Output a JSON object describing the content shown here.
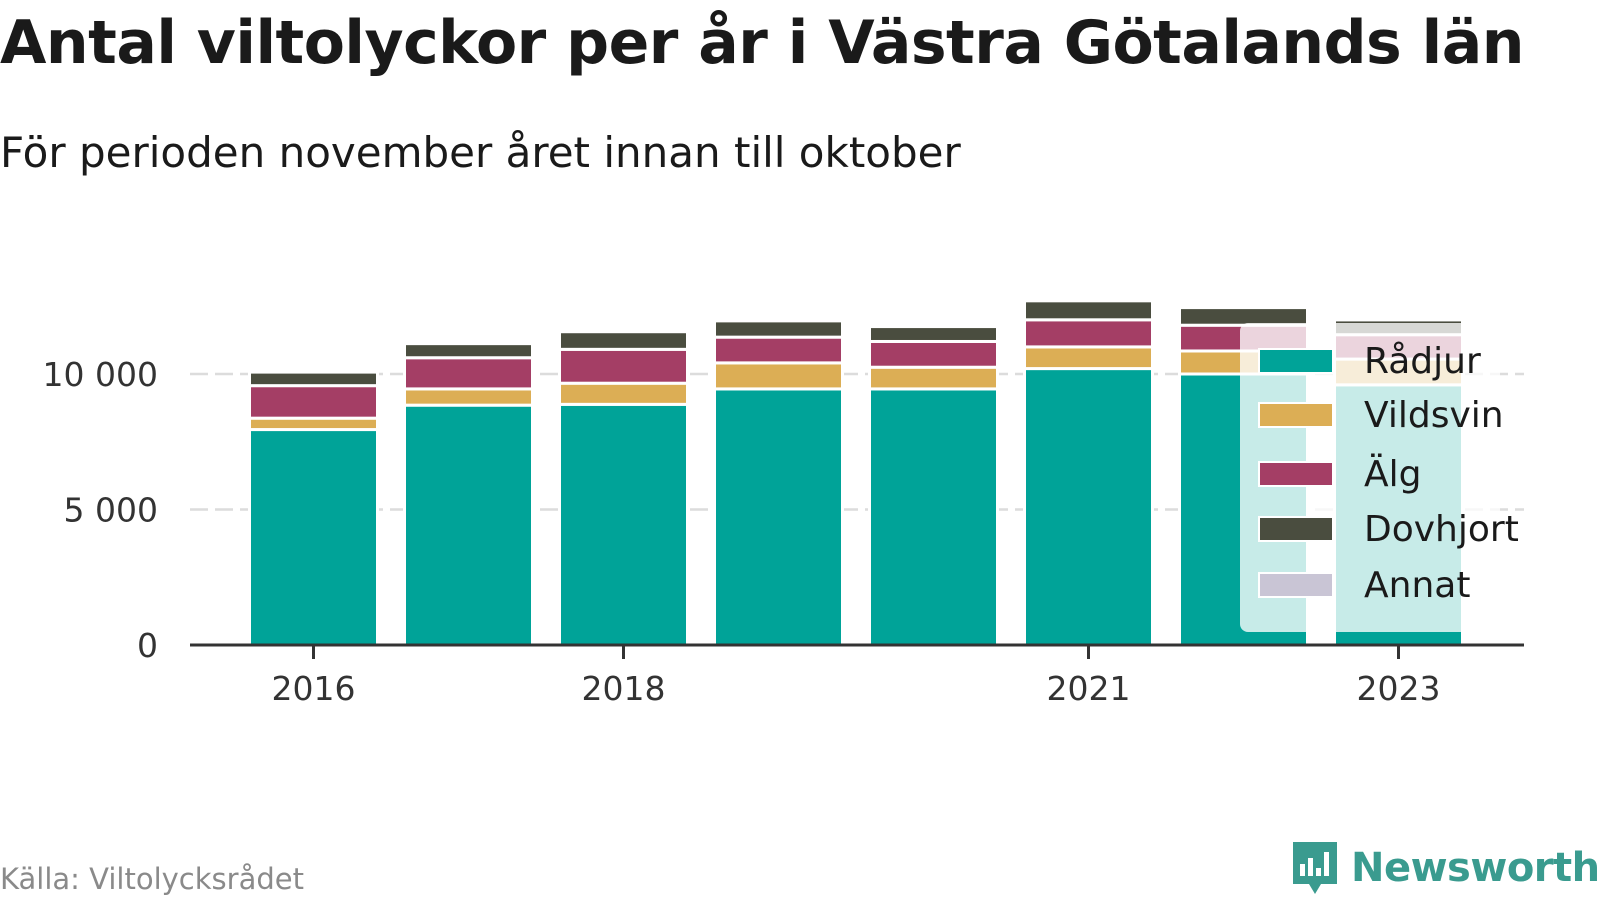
{
  "header": {
    "title": "Antal viltolyckor per år i Västra Götalands län",
    "subtitle": "För perioden november året innan till oktober"
  },
  "footer": {
    "source": "Källa: Viltolycksrådet",
    "brand": "Newsworthy",
    "brand_color": "#3a9b8f"
  },
  "chart_data": {
    "type": "bar",
    "stacked": true,
    "categories": [
      "2016",
      "2017",
      "2018",
      "2019",
      "2020",
      "2021",
      "2022",
      "2023"
    ],
    "x_tick_labels": [
      "2016",
      "2018",
      "2021",
      "2023"
    ],
    "y_ticks": [
      0,
      5000,
      10000
    ],
    "y_tick_labels": [
      "0",
      "5 000",
      "10 000"
    ],
    "ylim": [
      0,
      13000
    ],
    "grid": true,
    "legend_position": "right",
    "series": [
      {
        "name": "Rådjur",
        "color": "#00a398",
        "values": [
          7950,
          8850,
          8880,
          9450,
          9450,
          10200,
          10000,
          9600
        ]
      },
      {
        "name": "Vildsvin",
        "color": "#dcae55",
        "values": [
          420,
          600,
          780,
          960,
          800,
          800,
          850,
          950
        ]
      },
      {
        "name": "Älg",
        "color": "#a43e65",
        "values": [
          1200,
          1150,
          1250,
          950,
          950,
          1000,
          950,
          900
        ]
      },
      {
        "name": "Dovhjort",
        "color": "#4a4d3f",
        "values": [
          500,
          520,
          650,
          600,
          550,
          700,
          650,
          550
        ]
      },
      {
        "name": "Annat",
        "color": "#c9c5d5",
        "values": [
          0,
          0,
          0,
          0,
          0,
          0,
          0,
          50
        ]
      }
    ]
  }
}
